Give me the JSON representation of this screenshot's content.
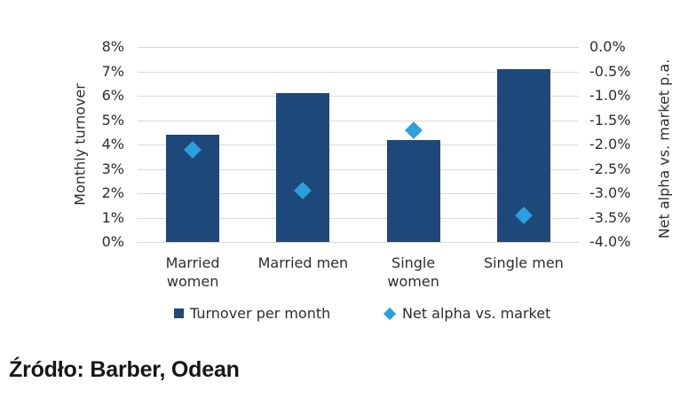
{
  "source_note": "Źródło: Barber, Odean",
  "colors": {
    "bar": "#1e4879",
    "diamond": "#2ca0dc",
    "gridline": "#d9d9d9",
    "text": "#2d2d2d"
  },
  "chart_data": {
    "type": "bar",
    "subtype": "combo bar + diamond scatter, dual y-axes",
    "title": "",
    "categories": [
      "Married women",
      "Married men",
      "Single women",
      "Single men"
    ],
    "category_display_lines": [
      [
        "Married",
        "women"
      ],
      [
        "Married men"
      ],
      [
        "Single",
        "women"
      ],
      [
        "Single men"
      ]
    ],
    "series": [
      {
        "name": "Turnover per month",
        "type": "bar",
        "axis": "left",
        "marker": "square",
        "color": "#1e4879",
        "values": [
          4.4,
          6.1,
          4.2,
          7.1
        ]
      },
      {
        "name": "Net alpha vs. market",
        "type": "scatter",
        "axis": "right",
        "marker": "diamond",
        "color": "#2ca0dc",
        "values": [
          -2.1,
          -2.95,
          -1.7,
          -3.45
        ]
      }
    ],
    "left_axis": {
      "label": "Monthly turnover",
      "min": 0,
      "max": 8,
      "step": 1,
      "ticks": [
        "8%",
        "7%",
        "6%",
        "5%",
        "4%",
        "3%",
        "2%",
        "1%",
        "0%"
      ]
    },
    "right_axis": {
      "label": "Net alpha vs. market p.a.",
      "min": -4.0,
      "max": 0.0,
      "step": 0.5,
      "ticks": [
        "0.0%",
        "-0.5%",
        "-1.0%",
        "-1.5%",
        "-2.0%",
        "-2.5%",
        "-3.0%",
        "-3.5%",
        "-4.0%"
      ]
    },
    "grid": true,
    "legend_position": "bottom",
    "legend": [
      {
        "label": "Turnover per month",
        "marker": "square"
      },
      {
        "label": "Net alpha vs. market",
        "marker": "diamond"
      }
    ]
  }
}
